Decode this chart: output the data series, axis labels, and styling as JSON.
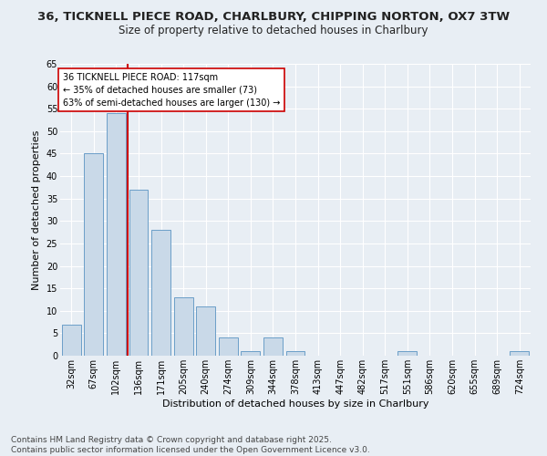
{
  "title_line1": "36, TICKNELL PIECE ROAD, CHARLBURY, CHIPPING NORTON, OX7 3TW",
  "title_line2": "Size of property relative to detached houses in Charlbury",
  "xlabel": "Distribution of detached houses by size in Charlbury",
  "ylabel": "Number of detached properties",
  "bin_labels": [
    "32sqm",
    "67sqm",
    "102sqm",
    "136sqm",
    "171sqm",
    "205sqm",
    "240sqm",
    "274sqm",
    "309sqm",
    "344sqm",
    "378sqm",
    "413sqm",
    "447sqm",
    "482sqm",
    "517sqm",
    "551sqm",
    "586sqm",
    "620sqm",
    "655sqm",
    "689sqm",
    "724sqm"
  ],
  "bar_values": [
    7,
    45,
    54,
    37,
    28,
    13,
    11,
    4,
    1,
    4,
    1,
    0,
    0,
    0,
    0,
    1,
    0,
    0,
    0,
    0,
    1
  ],
  "bar_color": "#c9d9e8",
  "bar_edge_color": "#6b9ec8",
  "background_color": "#e8eef4",
  "grid_color": "#ffffff",
  "annotation_box_color": "#ffffff",
  "annotation_border_color": "#cc0000",
  "annotation_text_line1": "36 TICKNELL PIECE ROAD: 117sqm",
  "annotation_text_line2": "← 35% of detached houses are smaller (73)",
  "annotation_text_line3": "63% of semi-detached houses are larger (130) →",
  "ylim": [
    0,
    65
  ],
  "yticks": [
    0,
    5,
    10,
    15,
    20,
    25,
    30,
    35,
    40,
    45,
    50,
    55,
    60,
    65
  ],
  "footer_line1": "Contains HM Land Registry data © Crown copyright and database right 2025.",
  "footer_line2": "Contains public sector information licensed under the Open Government Licence v3.0.",
  "annotation_fontsize": 7.0,
  "title_fontsize1": 9.5,
  "title_fontsize2": 8.5,
  "axis_label_fontsize": 8,
  "tick_fontsize": 7,
  "footer_fontsize": 6.5
}
